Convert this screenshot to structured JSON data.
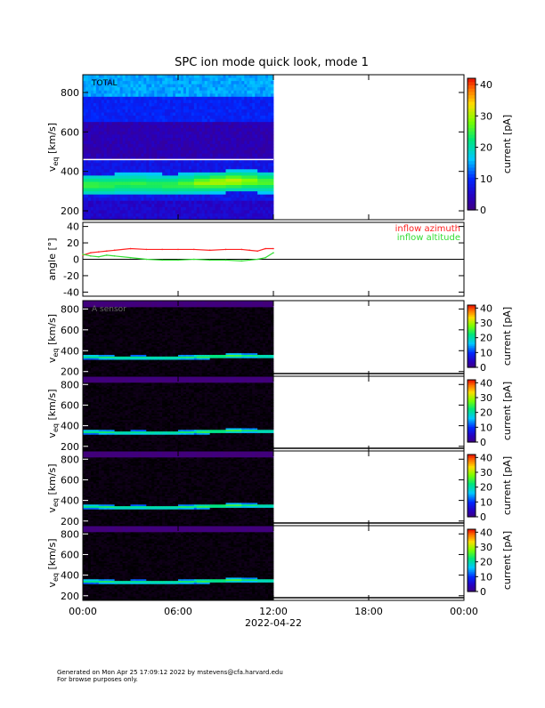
{
  "title": "SPC ion mode quick look, mode 1",
  "x_axis": {
    "tick_labels": [
      "00:00",
      "06:00",
      "12:00",
      "18:00",
      "00:00"
    ],
    "date_label": "2022-04-22"
  },
  "colorbar_label": "current [pA]",
  "footer": {
    "line1": "Generated on Mon Apr 25 17:09:12 2022 by mstevens@cfa.harvard.edu",
    "line2": "For browse purposes only."
  },
  "chart_data": [
    {
      "type": "heatmap",
      "panel": "total",
      "label": "TOTAL",
      "ylabel": "v_eq [km/s]",
      "ylabel_main": "v",
      "ylabel_sub": "eq",
      "ylabel_unit": "[km/s]",
      "ylim": [
        155,
        890
      ],
      "yticks": [
        200,
        400,
        600,
        800
      ],
      "xlim_hours": [
        0,
        24
      ],
      "data_end_hour": 12,
      "colorbar": {
        "range": [
          0,
          42
        ],
        "ticks": [
          0,
          10,
          20,
          30,
          40
        ]
      },
      "beam_center_kms": [
        330,
        330,
        335,
        335,
        332,
        330,
        335,
        340,
        345,
        350,
        350,
        345,
        340
      ],
      "beam_peak_pA": [
        16,
        15,
        14,
        15,
        14,
        15,
        17,
        22,
        25,
        26,
        22,
        18,
        15
      ]
    },
    {
      "type": "line",
      "panel": "angle",
      "ylabel": "angle [°]",
      "ylim": [
        -45,
        45
      ],
      "yticks": [
        -40,
        -20,
        0,
        20,
        40
      ],
      "x_hours": [
        0,
        0.5,
        1,
        1.5,
        2,
        3,
        4,
        5,
        6,
        7,
        8,
        9,
        10,
        10.5,
        11,
        11.5,
        12
      ],
      "series": [
        {
          "name": "inflow azimuth",
          "color": "#ff2020",
          "values": [
            5,
            8,
            9,
            10,
            11,
            13,
            12,
            12,
            12,
            12,
            11,
            12,
            12,
            11,
            10,
            13,
            13
          ]
        },
        {
          "name": "inflow altitude",
          "color": "#33dd33",
          "values": [
            6,
            4,
            3,
            5,
            4,
            2,
            0,
            -1,
            -1,
            0,
            -1,
            -1,
            -2,
            -1,
            0,
            2,
            8
          ]
        }
      ]
    },
    {
      "type": "heatmap",
      "panel": "sensor-a",
      "label": "A sensor",
      "ylabel": "v_eq [km/s]",
      "ylabel_main": "v",
      "ylabel_sub": "eq",
      "ylabel_unit": "[km/s]",
      "ylim": [
        155,
        880
      ],
      "yticks": [
        200,
        400,
        600,
        800
      ],
      "colorbar": {
        "range": [
          0,
          42
        ],
        "ticks": [
          0,
          10,
          20,
          30,
          40
        ]
      },
      "beam_center_kms": [
        340,
        335,
        330,
        332,
        330,
        330,
        335,
        340,
        345,
        350,
        350,
        345,
        335
      ]
    },
    {
      "type": "heatmap",
      "panel": "sensor-b",
      "ylabel": "v_eq [km/s]",
      "ylabel_main": "v",
      "ylabel_sub": "eq",
      "ylabel_unit": "[km/s]",
      "ylim": [
        155,
        880
      ],
      "yticks": [
        200,
        400,
        600,
        800
      ],
      "colorbar": {
        "range": [
          0,
          42
        ],
        "ticks": [
          0,
          10,
          20,
          30,
          40
        ]
      },
      "beam_center_kms": [
        340,
        335,
        330,
        332,
        330,
        330,
        335,
        340,
        345,
        350,
        350,
        345,
        335
      ]
    },
    {
      "type": "heatmap",
      "panel": "sensor-c",
      "ylabel": "v_eq [km/s]",
      "ylabel_main": "v",
      "ylabel_sub": "eq",
      "ylabel_unit": "[km/s]",
      "ylim": [
        155,
        880
      ],
      "yticks": [
        200,
        400,
        600,
        800
      ],
      "colorbar": {
        "range": [
          0,
          42
        ],
        "ticks": [
          0,
          10,
          20,
          30,
          40
        ]
      },
      "beam_center_kms": [
        340,
        335,
        330,
        332,
        330,
        330,
        335,
        340,
        345,
        350,
        350,
        345,
        335
      ]
    },
    {
      "type": "heatmap",
      "panel": "sensor-d",
      "ylabel": "v_eq [km/s]",
      "ylabel_main": "v",
      "ylabel_sub": "eq",
      "ylabel_unit": "[km/s]",
      "ylim": [
        155,
        880
      ],
      "yticks": [
        200,
        400,
        600,
        800
      ],
      "colorbar": {
        "range": [
          0,
          42
        ],
        "ticks": [
          0,
          10,
          20,
          30,
          40
        ]
      },
      "beam_center_kms": [
        340,
        335,
        330,
        332,
        330,
        330,
        335,
        340,
        345,
        350,
        350,
        345,
        335
      ]
    }
  ]
}
